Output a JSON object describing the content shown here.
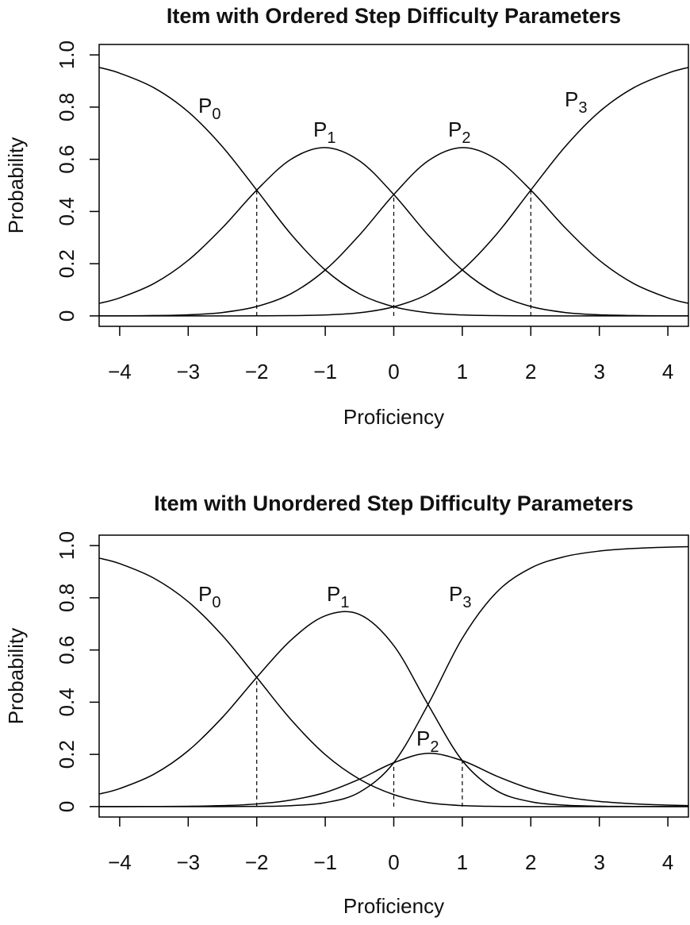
{
  "chart_data": [
    {
      "type": "line",
      "title": "Item with Ordered Step Difficulty Parameters",
      "x_label": "Proficiency",
      "y_label": "Probability",
      "x": [
        -4.3,
        -4,
        -3.5,
        -3,
        -2.5,
        -2,
        -1.5,
        -1,
        -0.5,
        0,
        0.5,
        1,
        1.5,
        2,
        2.5,
        3,
        3.5,
        4,
        4.3
      ],
      "series": [
        {
          "name": "P",
          "subscript": "0",
          "color": "#000000",
          "values": [
            0.952,
            0.93,
            0.874,
            0.782,
            0.648,
            0.482,
            0.313,
            0.176,
            0.084,
            0.035,
            0.012,
            0.0036,
            0.0009,
            0.0002,
            0,
            0,
            0,
            0,
            0
          ]
        },
        {
          "name": "P",
          "subscript": "1",
          "color": "#000000",
          "values": [
            0.048,
            0.069,
            0.124,
            0.213,
            0.338,
            0.482,
            0.6,
            0.645,
            0.594,
            0.465,
            0.31,
            0.176,
            0.085,
            0.036,
            0.013,
            0.0043,
            0.0013,
            0.0004,
            0.0002
          ]
        },
        {
          "name": "P",
          "subscript": "2",
          "color": "#000000",
          "values": [
            0.0002,
            0.0004,
            0.0013,
            0.0043,
            0.013,
            0.036,
            0.085,
            0.176,
            0.31,
            0.465,
            0.594,
            0.645,
            0.6,
            0.482,
            0.338,
            0.213,
            0.124,
            0.069,
            0.048
          ]
        },
        {
          "name": "P",
          "subscript": "3",
          "color": "#000000",
          "values": [
            0,
            0,
            0,
            0,
            0,
            0.0002,
            0.0009,
            0.0036,
            0.012,
            0.035,
            0.084,
            0.176,
            0.313,
            0.482,
            0.648,
            0.782,
            0.874,
            0.93,
            0.952
          ]
        }
      ],
      "dashed_lines": [
        {
          "x": -2,
          "y": 0.482
        },
        {
          "x": 0,
          "y": 0.465
        },
        {
          "x": 2,
          "y": 0.482
        }
      ],
      "xlim": [
        -4.3,
        4.3
      ],
      "ylim": [
        -0.04,
        1.04
      ],
      "xticks": [
        {
          "value": -4,
          "label": "−4"
        },
        {
          "value": -3,
          "label": "−3"
        },
        {
          "value": -2,
          "label": "−2"
        },
        {
          "value": -1,
          "label": "−1"
        },
        0,
        1,
        2,
        3,
        4
      ],
      "yticks": [
        0,
        0.2,
        0.4,
        0.6,
        0.8,
        {
          "value": 1,
          "label": "1.0"
        }
      ]
    },
    {
      "type": "line",
      "title": "Item with Unordered Step Difficulty Parameters",
      "x_label": "Proficiency",
      "y_label": "Probability",
      "x": [
        -4.3,
        -4,
        -3.5,
        -3,
        -2.5,
        -2,
        -1.5,
        -1,
        -0.5,
        0,
        0.5,
        1,
        1.5,
        2,
        2.5,
        3,
        3.5,
        4,
        4.3
      ],
      "series": [
        {
          "name": "P",
          "subscript": "0",
          "color": "#000000",
          "values": [
            0.952,
            0.931,
            0.875,
            0.785,
            0.655,
            0.495,
            0.333,
            0.199,
            0.105,
            0.046,
            0.015,
            0.0036,
            0.0006,
            0.0001,
            0,
            0,
            0,
            0,
            0
          ]
        },
        {
          "name": "P",
          "subscript": "1",
          "color": "#000000",
          "values": [
            0.048,
            0.069,
            0.124,
            0.214,
            0.342,
            0.495,
            0.638,
            0.731,
            0.736,
            0.617,
            0.391,
            0.176,
            0.061,
            0.0185,
            0.0053,
            0.0015,
            0.0004,
            0.0001,
            0
          ]
        },
        {
          "name": "P",
          "subscript": "2",
          "color": "#000000",
          "values": [
            0,
            0.0001,
            0.0004,
            0.0012,
            0.0036,
            0.01,
            0.025,
            0.054,
            0.105,
            0.168,
            0.204,
            0.176,
            0.117,
            0.068,
            0.037,
            0.0198,
            0.0105,
            0.0055,
            0.0037
          ]
        },
        {
          "name": "P",
          "subscript": "3",
          "color": "#000000",
          "values": [
            0,
            0,
            0,
            0,
            0.0001,
            0.0007,
            0.0035,
            0.015,
            0.055,
            0.168,
            0.391,
            0.645,
            0.821,
            0.914,
            0.958,
            0.979,
            0.989,
            0.994,
            0.996
          ]
        }
      ],
      "dashed_lines": [
        {
          "x": -2,
          "y": 0.495
        },
        {
          "x": 0,
          "y": 0.168
        },
        {
          "x": 1,
          "y": 0.176
        }
      ],
      "xlim": [
        -4.3,
        4.3
      ],
      "ylim": [
        -0.04,
        1.04
      ],
      "xticks": [
        {
          "value": -4,
          "label": "−4"
        },
        {
          "value": -3,
          "label": "−3"
        },
        {
          "value": -2,
          "label": "−2"
        },
        {
          "value": -1,
          "label": "−1"
        },
        0,
        1,
        2,
        3,
        4
      ],
      "yticks": [
        0,
        0.2,
        0.4,
        0.6,
        0.8,
        {
          "value": 1,
          "label": "1.0"
        }
      ]
    }
  ]
}
